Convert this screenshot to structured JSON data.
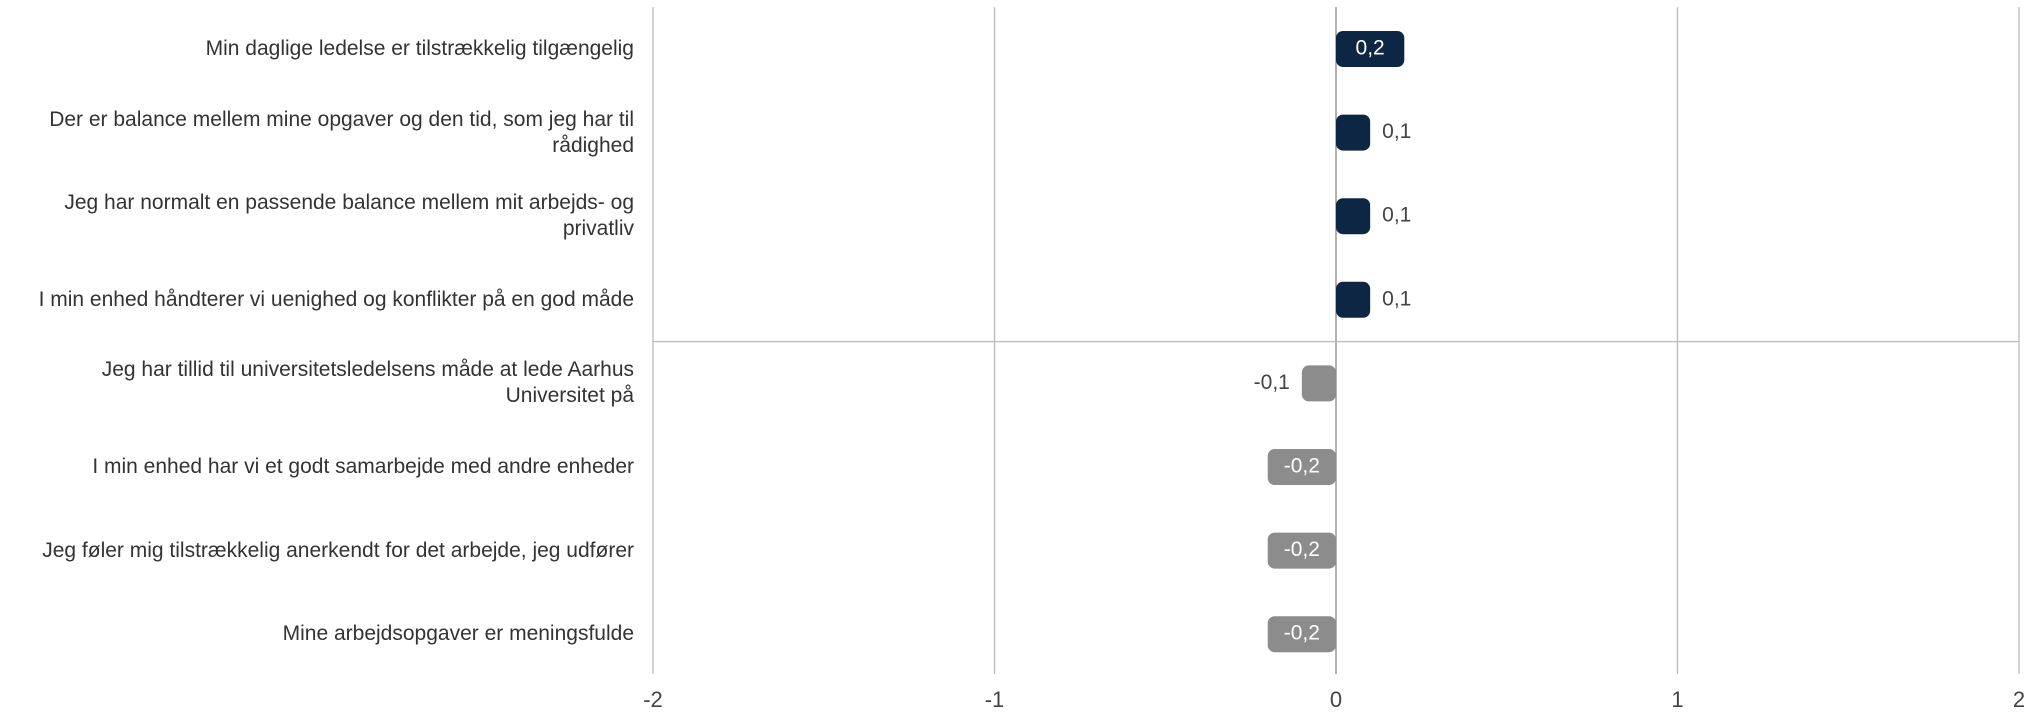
{
  "chart_data": {
    "type": "bar",
    "orientation": "horizontal",
    "categories": [
      "Min daglige ledelse er tilstrækkelig tilgængelig",
      "Der er balance mellem mine opgaver og den tid, som jeg har til rådighed",
      "Jeg har normalt en passende balance mellem mit arbejds- og privatliv",
      "I min enhed håndterer vi uenighed og konflikter på en god måde",
      "Jeg har tillid til universitetsledelsens måde at lede Aarhus Universitet på",
      "I min enhed har vi et godt samarbejde med andre enheder",
      "Jeg føler mig tilstrækkelig anerkendt for det arbejde, jeg udfører",
      "Mine arbejdsopgaver er meningsfulde"
    ],
    "values": [
      0.2,
      0.1,
      0.1,
      0.1,
      -0.1,
      -0.2,
      -0.2,
      -0.2
    ],
    "value_labels": [
      "0,2",
      "0,1",
      "0,1",
      "0,1",
      "-0,1",
      "-0,2",
      "-0,2",
      "-0,2"
    ],
    "positive_color": "#0d2644",
    "negative_color": "#8c8c8c",
    "xlim": [
      -2,
      2
    ],
    "xticks": [
      -2,
      -1,
      0,
      1,
      2
    ],
    "grid": true
  }
}
